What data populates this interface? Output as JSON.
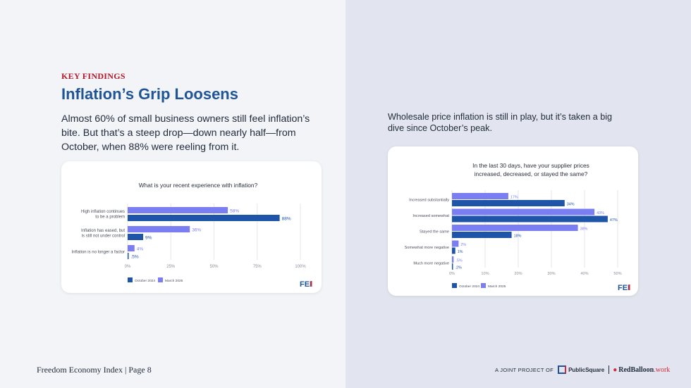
{
  "header": {
    "kicker": "KEY FINDINGS",
    "title": "Inflation’s Grip Loosens",
    "lead": "Almost 60% of small business owners still feel inflation’s bite. But that’s a steep drop—down nearly half—from October, when 88% were reeling from it."
  },
  "right_lead": "Wholesale price inflation is still in play, but it’s taken a big dive since October’s peak.",
  "colors": {
    "october": "#1f55a8",
    "march": "#7b7ef2",
    "grid": "#e4e6ee",
    "text": "#4a4f5c",
    "brand_red": "#d22a3a",
    "brand_blue": "#1f5596"
  },
  "brand_logo": "FEI",
  "chart_data": [
    {
      "type": "bar",
      "orientation": "horizontal",
      "title": "What is your recent experience with inflation?",
      "categories": [
        [
          "High inflation continues",
          "to be a problem"
        ],
        [
          "Inflation has eased, but",
          "is still not under control"
        ],
        [
          "Inflation is no longer a factor"
        ]
      ],
      "series": [
        {
          "name": "March 2025",
          "values": [
            58,
            36,
            4
          ],
          "labels": [
            "58%",
            "36%",
            "4%"
          ]
        },
        {
          "name": "October 2024",
          "values": [
            88,
            9,
            0.5
          ],
          "labels": [
            "88%",
            "9%",
            ".5%"
          ]
        }
      ],
      "legend": [
        "October 2024",
        "March 2025"
      ],
      "xlim": [
        0,
        100
      ],
      "xticks": [
        "0%",
        "25%",
        "50%",
        "75%",
        "100%"
      ],
      "xtick_values": [
        0,
        25,
        50,
        75,
        100
      ]
    },
    {
      "type": "bar",
      "orientation": "horizontal",
      "title": [
        "In the last 30 days, have your supplier prices",
        "increased, decreased, or stayed the same?"
      ],
      "categories": [
        [
          "Increased substantially"
        ],
        [
          "Increased somewhat"
        ],
        [
          "Stayed the same"
        ],
        [
          "Somewhat more negative"
        ],
        [
          "Much more negative"
        ]
      ],
      "series": [
        {
          "name": "March 2025",
          "values": [
            17,
            43,
            38,
            2,
            0.5
          ],
          "labels": [
            "17%",
            "43%",
            "38%",
            "2%",
            ".5%"
          ]
        },
        {
          "name": "October 2024",
          "values": [
            34,
            47,
            18,
            1,
            0.2
          ],
          "labels": [
            "34%",
            "47%",
            "18%",
            "1%",
            ".2%"
          ]
        }
      ],
      "legend": [
        "October 2024",
        "March 2025"
      ],
      "xlim": [
        0,
        50
      ],
      "xticks": [
        "0%",
        "10%",
        "20%",
        "30%",
        "40%",
        "50%"
      ],
      "xtick_values": [
        0,
        10,
        20,
        30,
        40,
        50
      ]
    }
  ],
  "footer": {
    "page": "Freedom Economy Index | Page 8",
    "joint": "A JOINT PROJECT OF",
    "partner1": "PublicSquare",
    "partner2_main": "RedBalloon",
    "partner2_suffix": ".work"
  }
}
